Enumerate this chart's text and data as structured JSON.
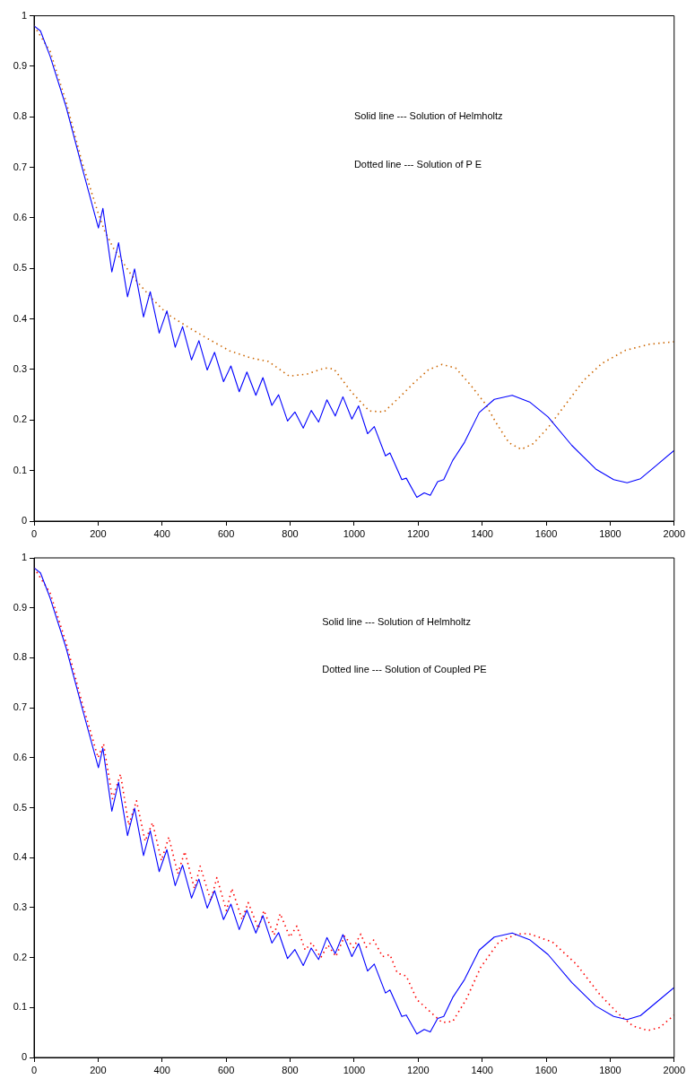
{
  "chart_data": [
    {
      "type": "line",
      "xlim": [
        0,
        2000
      ],
      "xticks": [
        0,
        200,
        400,
        600,
        800,
        1000,
        1200,
        1400,
        1600,
        1800,
        2000
      ],
      "ylim": [
        0,
        1
      ],
      "yticks": [
        0,
        0.1,
        0.2,
        0.3,
        0.4,
        0.5,
        0.6,
        0.7,
        0.8,
        0.9,
        1
      ],
      "grid": false,
      "legend": false,
      "marker": "none",
      "annotations": [
        "Solid line --- Solution of Helmholtz",
        "Dotted line --- Solution of P E"
      ],
      "series": [
        {
          "color": "#0000ff",
          "line_style": "solid",
          "x": [
            0,
            20,
            50,
            100,
            150,
            201,
            215,
            243,
            264,
            292,
            314,
            342,
            363,
            391,
            415,
            441,
            464,
            492,
            515,
            541,
            564,
            592,
            615,
            641,
            665,
            693,
            715,
            743,
            764,
            792,
            815,
            841,
            866,
            889,
            915,
            941,
            965,
            993,
            1014,
            1042,
            1063,
            1098,
            1112,
            1149,
            1163,
            1196,
            1219,
            1238,
            1261,
            1280,
            1308,
            1345,
            1391,
            1438,
            1494,
            1550,
            1606,
            1680,
            1755,
            1811,
            1853,
            1895,
            1942,
            2000
          ],
          "values": [
            0.98,
            0.97,
            0.92,
            0.82,
            0.7,
            0.58,
            0.619,
            0.493,
            0.551,
            0.444,
            0.499,
            0.404,
            0.454,
            0.372,
            0.416,
            0.344,
            0.385,
            0.319,
            0.357,
            0.299,
            0.334,
            0.276,
            0.307,
            0.256,
            0.295,
            0.249,
            0.284,
            0.229,
            0.25,
            0.198,
            0.216,
            0.184,
            0.219,
            0.196,
            0.24,
            0.208,
            0.246,
            0.202,
            0.228,
            0.173,
            0.187,
            0.129,
            0.135,
            0.082,
            0.085,
            0.047,
            0.056,
            0.051,
            0.078,
            0.082,
            0.12,
            0.156,
            0.215,
            0.241,
            0.249,
            0.235,
            0.206,
            0.15,
            0.103,
            0.082,
            0.076,
            0.084,
            0.109,
            0.14
          ]
        },
        {
          "color": "#cc6600",
          "line_style": "dotted",
          "x": [
            0,
            50,
            100,
            150,
            200,
            220,
            248,
            304,
            369,
            416,
            481,
            537,
            611,
            676,
            732,
            797,
            853,
            909,
            937,
            991,
            1047,
            1093,
            1140,
            1186,
            1233,
            1275,
            1317,
            1363,
            1410,
            1447,
            1484,
            1522,
            1559,
            1606,
            1662,
            1718,
            1774,
            1848,
            1923,
            2000
          ],
          "values": [
            0.98,
            0.93,
            0.83,
            0.71,
            0.61,
            0.575,
            0.54,
            0.487,
            0.44,
            0.41,
            0.384,
            0.363,
            0.337,
            0.323,
            0.316,
            0.287,
            0.291,
            0.303,
            0.301,
            0.256,
            0.218,
            0.216,
            0.244,
            0.273,
            0.3,
            0.31,
            0.303,
            0.27,
            0.232,
            0.191,
            0.155,
            0.142,
            0.153,
            0.185,
            0.232,
            0.279,
            0.312,
            0.338,
            0.35,
            0.355
          ]
        }
      ]
    },
    {
      "type": "line",
      "xlim": [
        0,
        2000
      ],
      "xticks": [
        0,
        200,
        400,
        600,
        800,
        1000,
        1200,
        1400,
        1600,
        1800,
        2000
      ],
      "ylim": [
        0,
        1
      ],
      "yticks": [
        0,
        0.1,
        0.2,
        0.3,
        0.4,
        0.5,
        0.6,
        0.7,
        0.8,
        0.9,
        1
      ],
      "grid": false,
      "legend": false,
      "marker": "none",
      "annotations": [
        "Solid line --- Solution of Helmholtz",
        "Dotted line --- Solution of Coupled PE"
      ],
      "series": [
        {
          "color": "#0000ff",
          "line_style": "solid",
          "x": [
            0,
            20,
            50,
            100,
            150,
            201,
            215,
            243,
            264,
            292,
            314,
            342,
            363,
            391,
            415,
            441,
            464,
            492,
            515,
            541,
            564,
            592,
            615,
            641,
            665,
            693,
            715,
            743,
            764,
            792,
            815,
            841,
            866,
            889,
            915,
            941,
            965,
            993,
            1014,
            1042,
            1063,
            1098,
            1112,
            1149,
            1163,
            1196,
            1219,
            1238,
            1261,
            1280,
            1308,
            1345,
            1391,
            1438,
            1494,
            1550,
            1606,
            1680,
            1755,
            1811,
            1853,
            1895,
            1942,
            2000
          ],
          "values": [
            0.98,
            0.97,
            0.92,
            0.82,
            0.7,
            0.58,
            0.619,
            0.493,
            0.551,
            0.444,
            0.499,
            0.404,
            0.454,
            0.372,
            0.416,
            0.344,
            0.385,
            0.319,
            0.357,
            0.299,
            0.334,
            0.276,
            0.307,
            0.256,
            0.295,
            0.249,
            0.284,
            0.229,
            0.25,
            0.198,
            0.216,
            0.184,
            0.219,
            0.196,
            0.24,
            0.208,
            0.246,
            0.202,
            0.228,
            0.173,
            0.187,
            0.129,
            0.135,
            0.082,
            0.085,
            0.047,
            0.056,
            0.051,
            0.078,
            0.082,
            0.12,
            0.156,
            0.215,
            0.241,
            0.249,
            0.235,
            0.206,
            0.15,
            0.103,
            0.082,
            0.076,
            0.084,
            0.109,
            0.14
          ]
        },
        {
          "color": "#ff0000",
          "line_style": "dotted",
          "x": [
            0,
            50,
            100,
            150,
            200,
            217,
            245,
            270,
            296,
            320,
            347,
            370,
            398,
            421,
            449,
            471,
            501,
            519,
            552,
            571,
            601,
            618,
            650,
            669,
            701,
            718,
            750,
            769,
            799,
            821,
            847,
            867,
            896,
            918,
            943,
            970,
            998,
            1021,
            1038,
            1061,
            1089,
            1112,
            1135,
            1163,
            1196,
            1247,
            1275,
            1308,
            1350,
            1396,
            1452,
            1508,
            1545,
            1620,
            1694,
            1769,
            1825,
            1871,
            1918,
            1955,
            2000
          ],
          "values": [
            0.98,
            0.93,
            0.83,
            0.71,
            0.6,
            0.628,
            0.518,
            0.567,
            0.465,
            0.514,
            0.433,
            0.47,
            0.394,
            0.441,
            0.368,
            0.412,
            0.338,
            0.383,
            0.314,
            0.36,
            0.294,
            0.338,
            0.276,
            0.31,
            0.258,
            0.294,
            0.245,
            0.288,
            0.241,
            0.263,
            0.215,
            0.23,
            0.2,
            0.225,
            0.202,
            0.243,
            0.22,
            0.247,
            0.221,
            0.235,
            0.202,
            0.206,
            0.169,
            0.163,
            0.116,
            0.086,
            0.07,
            0.072,
            0.116,
            0.181,
            0.231,
            0.247,
            0.248,
            0.231,
            0.187,
            0.125,
            0.088,
            0.063,
            0.054,
            0.06,
            0.085
          ]
        }
      ]
    }
  ]
}
